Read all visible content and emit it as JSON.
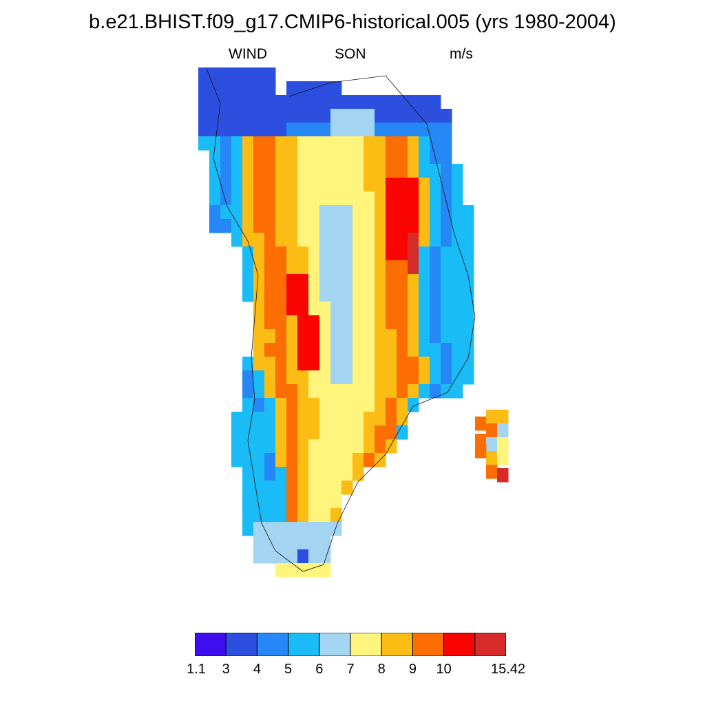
{
  "title": "b.e21.BHIST.f09_g17.CMIP6-historical.005 (yrs 1980-2004)",
  "left_label": "WIND",
  "center_label": "SON",
  "right_label": "m/s",
  "colorbar": {
    "colors": [
      "#3e0ef0",
      "#2d4fe0",
      "#2688f7",
      "#1abcf8",
      "#a3d4f2",
      "#fff47c",
      "#fbbc14",
      "#fc6e03",
      "#f90401",
      "#d62b28"
    ],
    "tick_labels": [
      "1.1",
      "3",
      "4",
      "5",
      "6",
      "7",
      "8",
      "9",
      "10",
      "15.42"
    ]
  }
}
